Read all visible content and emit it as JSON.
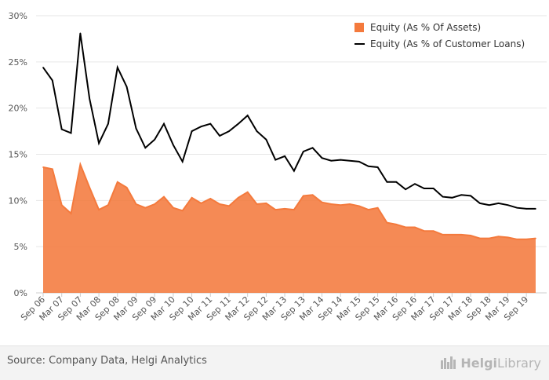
{
  "chart_data": {
    "type": "area",
    "y_ticks": [
      "0%",
      "5%",
      "10%",
      "15%",
      "20%",
      "25%",
      "30%"
    ],
    "ylim": [
      0,
      30
    ],
    "grid": true,
    "legend_position": "top-right",
    "x_tick_labels": [
      "Sep 06",
      "Mar 07",
      "Sep 07",
      "Mar 08",
      "Sep 08",
      "Mar 09",
      "Sep 09",
      "Mar 10",
      "Sep 10",
      "Mar 11",
      "Sep 11",
      "Mar 12",
      "Sep 12",
      "Mar 13",
      "Sep 13",
      "Mar 14",
      "Sep 14",
      "Mar 15",
      "Sep 15",
      "Mar 16",
      "Sep 16",
      "Mar 17",
      "Sep 17",
      "Mar 18",
      "Sep 18",
      "Mar 19",
      "Sep 19"
    ],
    "x": [
      "Sep 06",
      "Dec 06",
      "Mar 07",
      "Jun 07",
      "Sep 07",
      "Dec 07",
      "Mar 08",
      "Jun 08",
      "Sep 08",
      "Dec 08",
      "Mar 09",
      "Jun 09",
      "Sep 09",
      "Dec 09",
      "Mar 10",
      "Jun 10",
      "Sep 10",
      "Dec 10",
      "Mar 11",
      "Jun 11",
      "Sep 11",
      "Dec 11",
      "Mar 12",
      "Jun 12",
      "Sep 12",
      "Dec 12",
      "Mar 13",
      "Jun 13",
      "Sep 13",
      "Dec 13",
      "Mar 14",
      "Jun 14",
      "Sep 14",
      "Dec 14",
      "Mar 15",
      "Jun 15",
      "Sep 15",
      "Dec 15",
      "Mar 16",
      "Jun 16",
      "Sep 16",
      "Dec 16",
      "Mar 17",
      "Jun 17",
      "Sep 17",
      "Dec 17",
      "Mar 18",
      "Jun 18",
      "Sep 18",
      "Dec 18",
      "Mar 19",
      "Jun 19",
      "Sep 19",
      "Dec 19"
    ],
    "series": [
      {
        "name": "Equity (As % Of Assets)",
        "kind": "area",
        "color": "#f47a3d",
        "values": [
          13.6,
          13.4,
          9.5,
          8.6,
          13.9,
          11.4,
          9.0,
          9.5,
          12.0,
          11.4,
          9.6,
          9.2,
          9.6,
          10.4,
          9.2,
          8.9,
          10.3,
          9.7,
          10.2,
          9.6,
          9.4,
          10.3,
          10.9,
          9.6,
          9.7,
          9.0,
          9.1,
          9.0,
          10.5,
          10.6,
          9.8,
          9.6,
          9.5,
          9.6,
          9.4,
          9.0,
          9.2,
          7.6,
          7.4,
          7.1,
          7.1,
          6.7,
          6.7,
          6.3,
          6.3,
          6.3,
          6.2,
          5.9,
          5.9,
          6.1,
          6.0,
          5.8,
          5.8,
          5.9
        ]
      },
      {
        "name": "Equity (As % of Customer Loans)",
        "kind": "line",
        "color": "#000000",
        "values": [
          24.4,
          23.0,
          17.7,
          17.3,
          28.1,
          21.0,
          16.2,
          18.3,
          24.4,
          22.3,
          17.8,
          15.7,
          16.6,
          18.3,
          16.0,
          14.2,
          17.5,
          18.0,
          18.3,
          17.0,
          17.5,
          18.3,
          19.2,
          17.5,
          16.6,
          14.4,
          14.8,
          13.2,
          15.3,
          15.7,
          14.6,
          14.3,
          14.4,
          14.3,
          14.2,
          13.7,
          13.6,
          12.0,
          12.0,
          11.2,
          11.8,
          11.3,
          11.3,
          10.4,
          10.3,
          10.6,
          10.5,
          9.7,
          9.5,
          9.7,
          9.5,
          9.2,
          9.1,
          9.1
        ]
      }
    ]
  },
  "footer": {
    "source": "Source: Company Data, Helgi Analytics",
    "logo_prefix": "Helgi",
    "logo_suffix": "Library"
  }
}
